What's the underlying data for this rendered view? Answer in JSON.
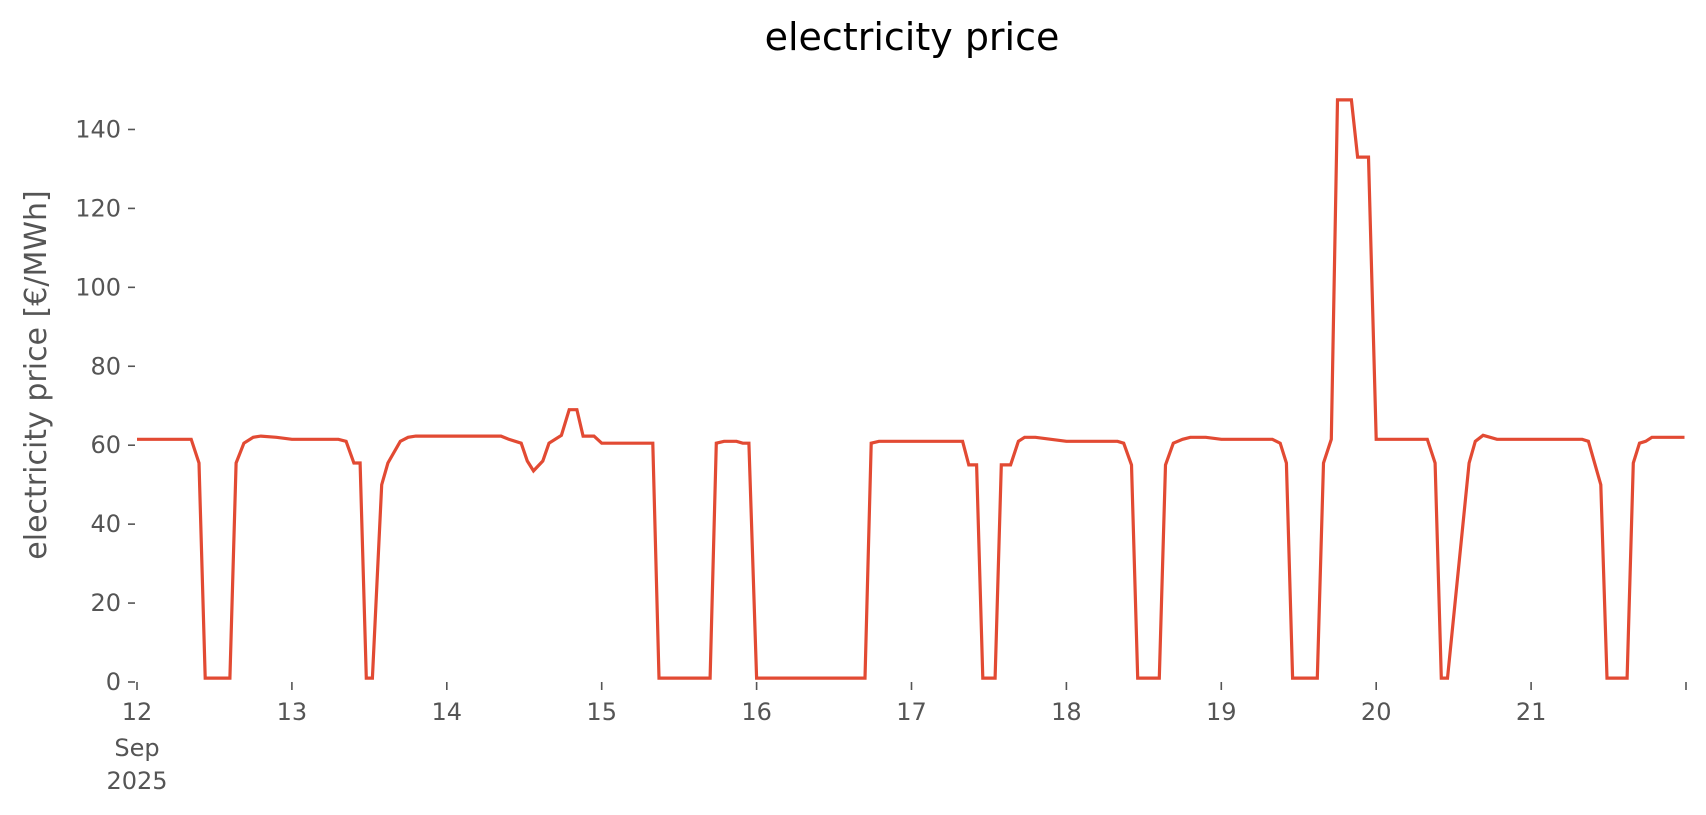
{
  "chart_data": {
    "type": "line",
    "title": "electricity price",
    "xlabel": "",
    "ylabel": "electricity price [€/MWh]",
    "x_unit": "day of September 2025",
    "xlim": [
      12,
      22
    ],
    "ylim": [
      0,
      150
    ],
    "y_ticks": [
      0,
      20,
      40,
      60,
      80,
      100,
      120,
      140
    ],
    "y_tick_labels": [
      "0",
      "20",
      "40",
      "60",
      "80",
      "100",
      "120",
      "140"
    ],
    "x_ticks": [
      12,
      13,
      14,
      15,
      16,
      17,
      18,
      19,
      20,
      21,
      22
    ],
    "x_tick_labels": [
      "12",
      "13",
      "14",
      "15",
      "16",
      "17",
      "18",
      "19",
      "20",
      "21",
      ""
    ],
    "x_tick_sublabels": [
      "Sep",
      "2025"
    ],
    "grid": false,
    "legend": "none",
    "line_color": "#e24a33",
    "series": [
      {
        "x": [
          12.0,
          12.35,
          12.4,
          12.44,
          12.6,
          12.64,
          12.69,
          12.75,
          12.8,
          12.9,
          13.0,
          13.3,
          13.35,
          13.4,
          13.44,
          13.48,
          13.52,
          13.58,
          13.62,
          13.7,
          13.75,
          13.8,
          14.35,
          14.4,
          14.48,
          14.52,
          14.56,
          14.62,
          14.66,
          14.74,
          14.79,
          14.84,
          14.88,
          14.95,
          15.0,
          15.33,
          15.37,
          15.7,
          15.74,
          15.79,
          15.87,
          15.91,
          15.95,
          16.0,
          16.4,
          16.7,
          16.74,
          16.79,
          17.33,
          17.37,
          17.42,
          17.46,
          17.54,
          17.58,
          17.64,
          17.69,
          17.73,
          17.8,
          17.9,
          18.0,
          18.33,
          18.37,
          18.42,
          18.46,
          18.6,
          18.64,
          18.69,
          18.75,
          18.8,
          18.9,
          19.0,
          19.33,
          19.38,
          19.42,
          19.46,
          19.62,
          19.66,
          19.71,
          19.75,
          19.84,
          19.88,
          19.95,
          20.0,
          20.33,
          20.38,
          20.42,
          20.46,
          20.6,
          20.64,
          20.69,
          20.78,
          20.9,
          21.33,
          21.37,
          21.45,
          21.49,
          21.62,
          21.66,
          21.7,
          21.74,
          21.78,
          21.99
        ],
        "y": [
          61.5,
          61.5,
          55.5,
          1,
          1,
          55.5,
          60.5,
          62,
          62.3,
          62,
          61.5,
          61.5,
          61,
          55.5,
          55.5,
          1,
          1,
          50,
          55.5,
          61,
          62,
          62.3,
          62.3,
          61.5,
          60.5,
          56,
          53.5,
          56,
          60.5,
          62.5,
          69,
          69,
          62.3,
          62.3,
          60.5,
          60.5,
          1,
          1,
          60.5,
          61,
          61,
          60.5,
          60.5,
          1,
          1,
          1,
          60.5,
          61,
          61,
          55,
          55,
          1,
          1,
          55,
          55,
          61,
          62,
          62,
          61.5,
          61,
          61,
          60.5,
          55,
          1,
          1,
          55,
          60.5,
          61.5,
          62,
          62,
          61.5,
          61.5,
          60.5,
          55.5,
          1,
          1,
          55.5,
          61.5,
          147.5,
          147.5,
          133,
          133,
          61.5,
          61.5,
          55.5,
          1,
          1,
          55.5,
          61,
          62.5,
          61.5,
          61.5,
          61.5,
          61,
          50,
          1,
          1,
          55.5,
          60.5,
          61,
          62,
          62
        ]
      }
    ]
  }
}
